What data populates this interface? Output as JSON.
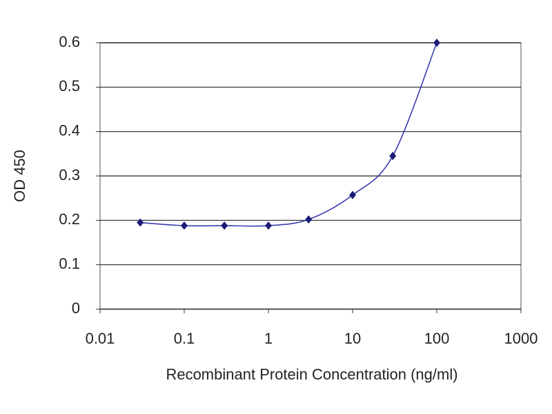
{
  "chart_data": {
    "type": "line",
    "x_label": "Recombinant Protein Concentration (ng/ml)",
    "y_label": "OD 450",
    "x": [
      0.03,
      0.1,
      0.3,
      1,
      3,
      10,
      30,
      100
    ],
    "values": [
      0.195,
      0.188,
      0.188,
      0.188,
      0.202,
      0.257,
      0.345,
      0.6
    ],
    "color": "#1c1c78",
    "line_color": "#3a3ab0",
    "x_scale": "log",
    "xlim": [
      0.01,
      1000
    ],
    "xticks": [
      0.01,
      0.1,
      1,
      10,
      100,
      1000
    ],
    "ylim": [
      0,
      0.6
    ],
    "yticks": [
      0,
      0.1,
      0.2,
      0.3,
      0.4,
      0.5,
      0.6
    ],
    "grid": true
  }
}
